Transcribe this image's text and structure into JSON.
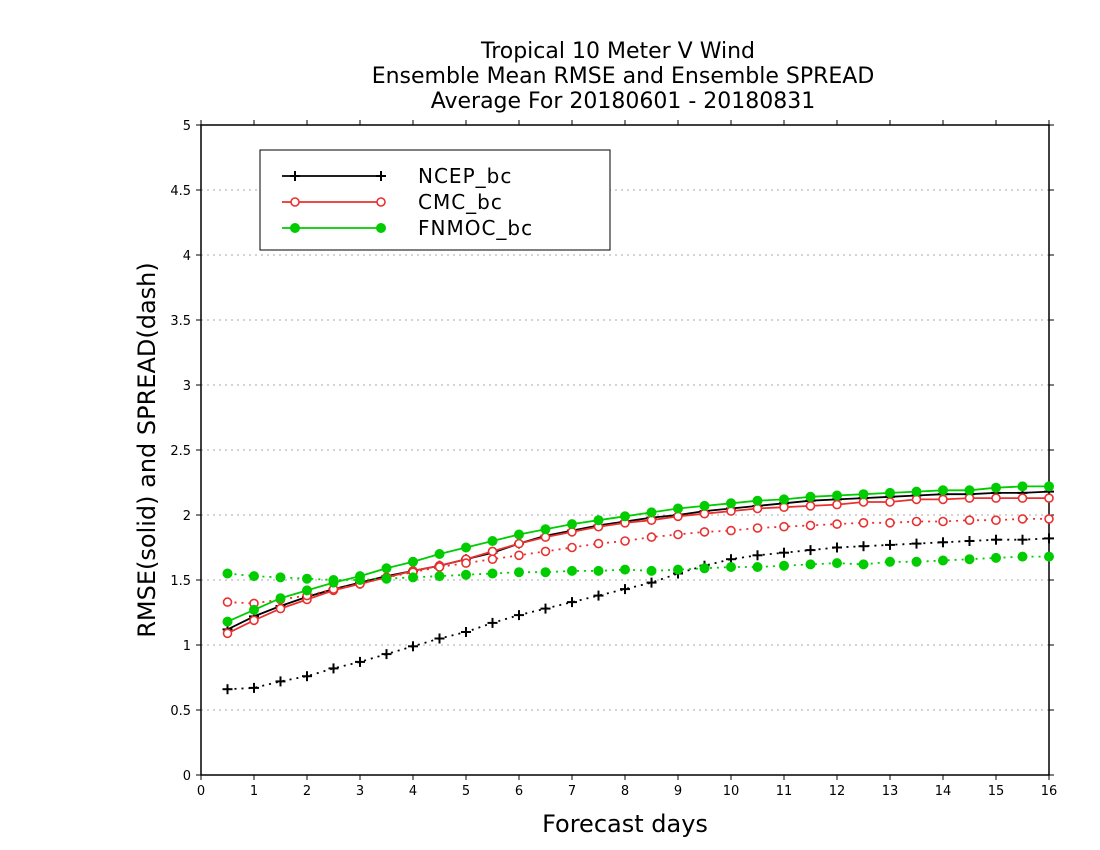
{
  "chart_data": {
    "type": "line",
    "title": [
      "Tropical 10 Meter V Wind",
      "Ensemble Mean RMSE and Ensemble SPREAD",
      "Average For 20180601 - 20180831"
    ],
    "xlabel": "Forecast days",
    "ylabel": "RMSE(solid) and SPREAD(dash)",
    "xlim": [
      0,
      16
    ],
    "ylim": [
      0,
      5
    ],
    "x_ticks": [
      "0",
      "1",
      "2",
      "3",
      "4",
      "5",
      "6",
      "7",
      "8",
      "9",
      "10",
      "11",
      "12",
      "13",
      "14",
      "15",
      "16"
    ],
    "y_ticks": [
      "0",
      "0.5",
      "1",
      "1.5",
      "2",
      "2.5",
      "3",
      "3.5",
      "4",
      "4.5",
      "5"
    ],
    "grid": "horizontal dotted",
    "legend_position": "top-left",
    "x": [
      0.5,
      1,
      1.5,
      2,
      2.5,
      3,
      3.5,
      4,
      4.5,
      5,
      5.5,
      6,
      6.5,
      7,
      7.5,
      8,
      8.5,
      9,
      9.5,
      10,
      10.5,
      11,
      11.5,
      12,
      12.5,
      13,
      13.5,
      14,
      14.5,
      15,
      15.5,
      16
    ],
    "series": [
      {
        "name": "NCEP_bc",
        "color": "#000000",
        "marker": "plus",
        "rmse": [
          1.12,
          1.22,
          1.3,
          1.37,
          1.43,
          1.48,
          1.53,
          1.57,
          1.61,
          1.66,
          1.71,
          1.78,
          1.84,
          1.88,
          1.92,
          1.95,
          1.98,
          2.0,
          2.03,
          2.05,
          2.07,
          2.09,
          2.11,
          2.12,
          2.13,
          2.14,
          2.15,
          2.16,
          2.16,
          2.17,
          2.17,
          2.18
        ],
        "spread": [
          0.66,
          0.67,
          0.72,
          0.76,
          0.82,
          0.87,
          0.93,
          0.99,
          1.05,
          1.1,
          1.17,
          1.23,
          1.28,
          1.33,
          1.38,
          1.43,
          1.48,
          1.55,
          1.61,
          1.66,
          1.69,
          1.71,
          1.73,
          1.75,
          1.76,
          1.77,
          1.78,
          1.79,
          1.8,
          1.81,
          1.81,
          1.82
        ]
      },
      {
        "name": "CMC_bc",
        "color": "#e8312f",
        "marker": "open-circle",
        "rmse": [
          1.09,
          1.19,
          1.28,
          1.35,
          1.42,
          1.47,
          1.52,
          1.57,
          1.61,
          1.66,
          1.72,
          1.78,
          1.83,
          1.87,
          1.91,
          1.94,
          1.96,
          1.99,
          2.01,
          2.03,
          2.05,
          2.06,
          2.07,
          2.08,
          2.1,
          2.1,
          2.12,
          2.12,
          2.13,
          2.13,
          2.13,
          2.13
        ],
        "spread": [
          1.33,
          1.32,
          1.35,
          1.38,
          1.43,
          1.47,
          1.52,
          1.56,
          1.6,
          1.63,
          1.66,
          1.69,
          1.72,
          1.75,
          1.78,
          1.8,
          1.83,
          1.85,
          1.87,
          1.88,
          1.9,
          1.91,
          1.92,
          1.93,
          1.94,
          1.94,
          1.95,
          1.95,
          1.96,
          1.96,
          1.97,
          1.97
        ]
      },
      {
        "name": "FNMOC_bc",
        "color": "#00cc00",
        "marker": "filled-circle",
        "rmse": [
          1.18,
          1.27,
          1.36,
          1.42,
          1.48,
          1.53,
          1.59,
          1.64,
          1.7,
          1.75,
          1.8,
          1.85,
          1.89,
          1.93,
          1.96,
          1.99,
          2.02,
          2.05,
          2.07,
          2.09,
          2.11,
          2.12,
          2.14,
          2.15,
          2.16,
          2.17,
          2.18,
          2.19,
          2.19,
          2.21,
          2.22,
          2.22
        ],
        "spread": [
          1.55,
          1.53,
          1.52,
          1.51,
          1.5,
          1.5,
          1.51,
          1.52,
          1.53,
          1.54,
          1.55,
          1.56,
          1.56,
          1.57,
          1.57,
          1.58,
          1.57,
          1.58,
          1.59,
          1.6,
          1.6,
          1.61,
          1.62,
          1.63,
          1.62,
          1.64,
          1.64,
          1.65,
          1.66,
          1.67,
          1.68,
          1.68
        ]
      }
    ]
  }
}
